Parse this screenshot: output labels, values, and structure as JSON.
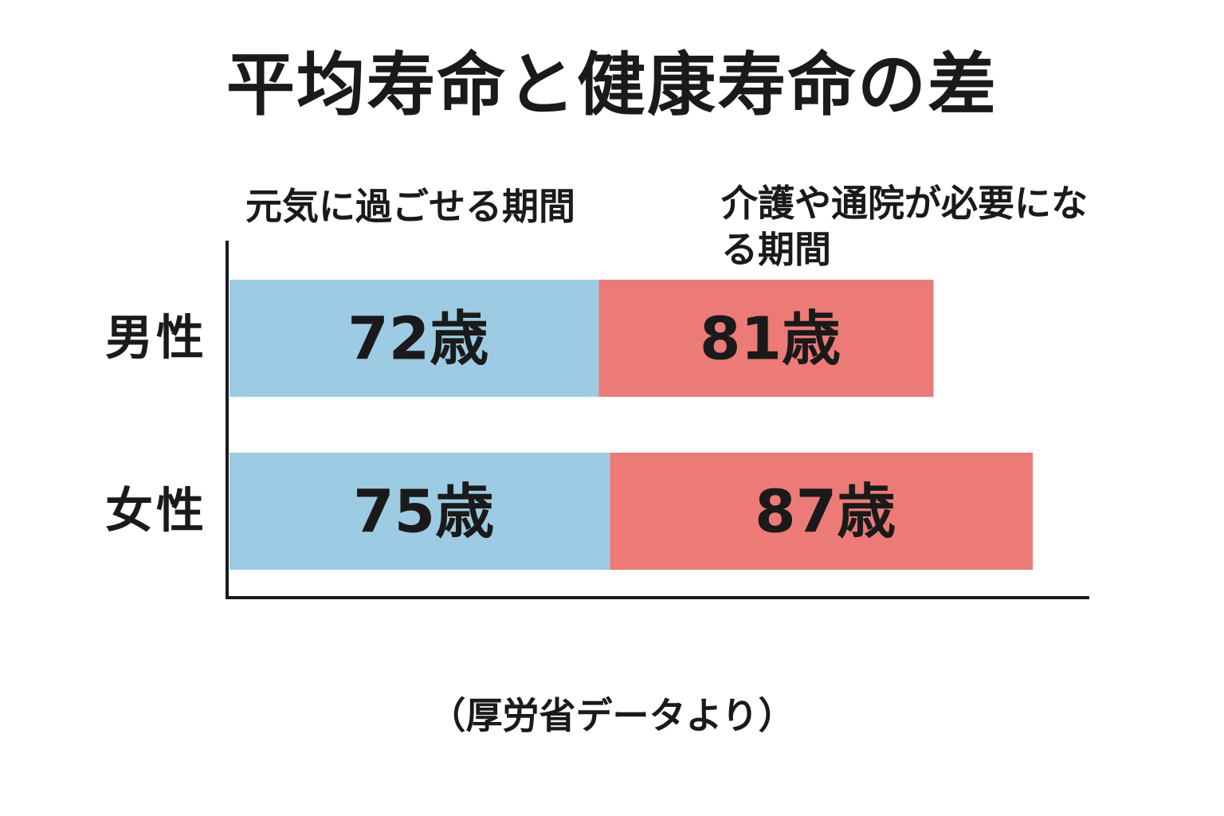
{
  "title": "平均寿命と健康寿命の差",
  "footnote": "（厚労省データより）",
  "chart_data": {
    "type": "bar",
    "orientation": "horizontal",
    "stacked": true,
    "categories": [
      "男性",
      "女性"
    ],
    "series": [
      {
        "name": "元気に過ごせる期間",
        "values": [
          72,
          75
        ],
        "labels": [
          "72歳",
          "75歳"
        ],
        "color": "#9dcbe3"
      },
      {
        "name": "介護や通院が必要になる期間",
        "values": [
          81,
          87
        ],
        "labels": [
          "81歳",
          "87歳"
        ],
        "color": "#ec7b77"
      }
    ],
    "value_unit": "歳",
    "grid": false,
    "axis_ticks": false
  }
}
